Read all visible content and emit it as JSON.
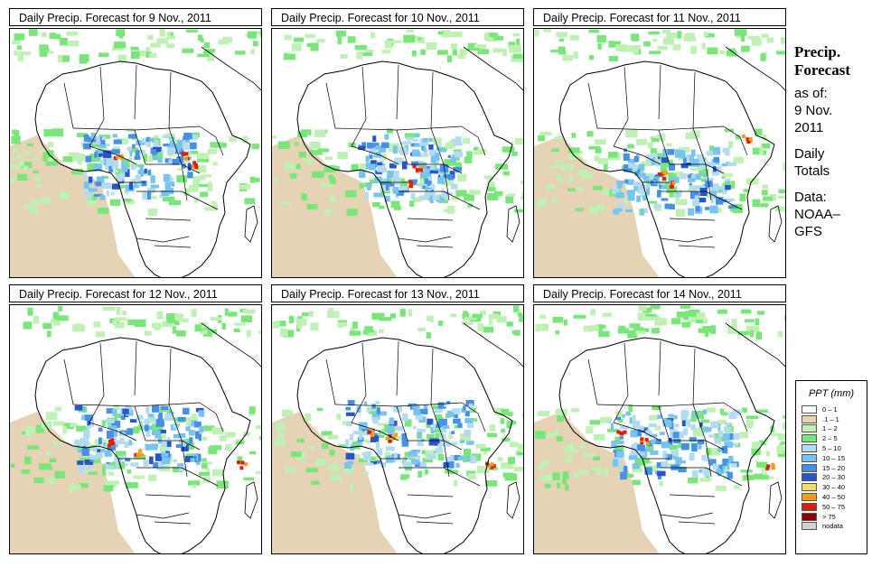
{
  "panels": [
    {
      "title": "Daily Precip. Forecast for  9 Nov., 2011",
      "variant": 0
    },
    {
      "title": "Daily Precip. Forecast for  10 Nov., 2011",
      "variant": 1
    },
    {
      "title": "Daily Precip. Forecast for  11 Nov., 2011",
      "variant": 2
    },
    {
      "title": "Daily Precip. Forecast for  12 Nov., 2011",
      "variant": 3
    },
    {
      "title": "Daily Precip. Forecast for  13 Nov., 2011",
      "variant": 4
    },
    {
      "title": "Daily Precip. Forecast for  14 Nov., 2011",
      "variant": 5
    }
  ],
  "side": {
    "title_line1": "Precip.",
    "title_line2": "Forecast",
    "asof": "as of:",
    "date_line1": "9 Nov.",
    "date_line2": "2011",
    "daily_line1": "Daily",
    "daily_line2": "Totals",
    "data_line1": "Data:",
    "data_line2": "NOAA–",
    "data_line3": "GFS"
  },
  "legend": {
    "title": "PPT (mm)",
    "items": [
      {
        "label": "0 – 1",
        "color": "#ffffff"
      },
      {
        "label": ".1 – 1",
        "color": "#e6d2b4"
      },
      {
        "label": "1 – 2",
        "color": "#bff0b4"
      },
      {
        "label": "2 – 5",
        "color": "#78e678"
      },
      {
        "label": "5 – 10",
        "color": "#b4dcf0"
      },
      {
        "label": "10 – 15",
        "color": "#78c3f0"
      },
      {
        "label": "15 – 20",
        "color": "#4691e6"
      },
      {
        "label": "20 – 30",
        "color": "#2855c8"
      },
      {
        "label": "30 – 40",
        "color": "#f5dc64"
      },
      {
        "label": "40 – 50",
        "color": "#f59b1e"
      },
      {
        "label": "50 – 75",
        "color": "#dc1e0a"
      },
      {
        "label": "> 75",
        "color": "#8c0000"
      },
      {
        "label": "nodata",
        "color": "#d2d2d2"
      }
    ]
  }
}
